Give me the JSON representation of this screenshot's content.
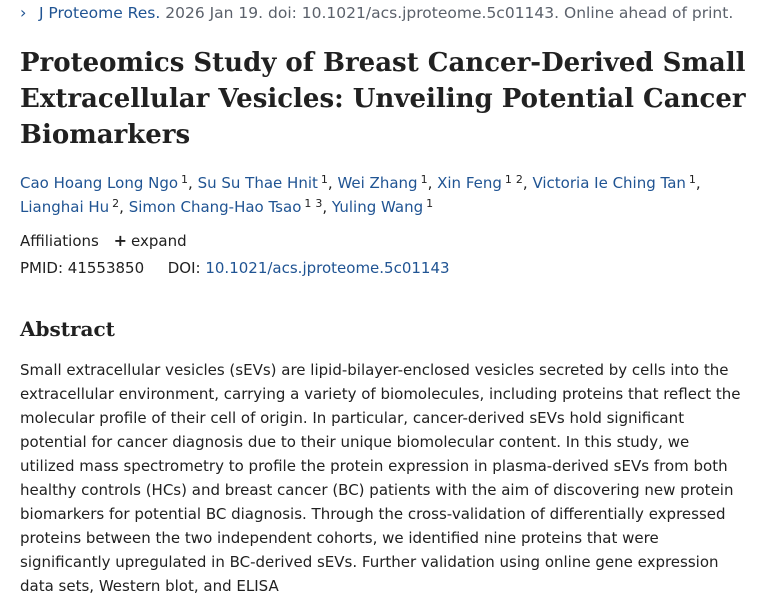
{
  "citation": {
    "journal": "J Proteome Res.",
    "date_doi": "2026 Jan 19. doi: 10.1021/acs.jproteome.5c01143. Online ahead of print."
  },
  "title": "Proteomics Study of Breast Cancer-Derived Small Extracellular Vesicles: Unveiling Potential Cancer Biomarkers",
  "authors": [
    {
      "name": "Cao Hoang Long Ngo",
      "affils": [
        "1"
      ]
    },
    {
      "name": "Su Su Thae Hnit",
      "affils": [
        "1"
      ]
    },
    {
      "name": "Wei Zhang",
      "affils": [
        "1"
      ]
    },
    {
      "name": "Xin Feng",
      "affils": [
        "1",
        "2"
      ]
    },
    {
      "name": "Victoria Ie Ching Tan",
      "affils": [
        "1"
      ]
    },
    {
      "name": "Lianghai Hu",
      "affils": [
        "2"
      ]
    },
    {
      "name": "Simon Chang-Hao Tsao",
      "affils": [
        "1",
        "3"
      ]
    },
    {
      "name": "Yuling Wang",
      "affils": [
        "1"
      ]
    }
  ],
  "affiliations": {
    "label": "Affiliations",
    "expand_label": "expand"
  },
  "ids": {
    "pmid_label": "PMID:",
    "pmid": "41553850",
    "doi_label": "DOI:",
    "doi": "10.1021/acs.jproteome.5c01143"
  },
  "abstract": {
    "heading": "Abstract",
    "text": "Small extracellular vesicles (sEVs) are lipid-bilayer-enclosed vesicles secreted by cells into the extracellular environment, carrying a variety of biomolecules, including proteins that reflect the molecular profile of their cell of origin. In particular, cancer-derived sEVs hold significant potential for cancer diagnosis due to their unique biomolecular content. In this study, we utilized mass spectrometry to profile the protein expression in plasma-derived sEVs from both healthy controls (HCs) and breast cancer (BC) patients with the aim of discovering new protein biomarkers for potential BC diagnosis. Through the cross-validation of differentially expressed proteins between the two independent cohorts, we identified nine proteins that were significantly upregulated in BC-derived sEVs. Further validation using online gene expression data sets, Western blot, and ELISA"
  }
}
